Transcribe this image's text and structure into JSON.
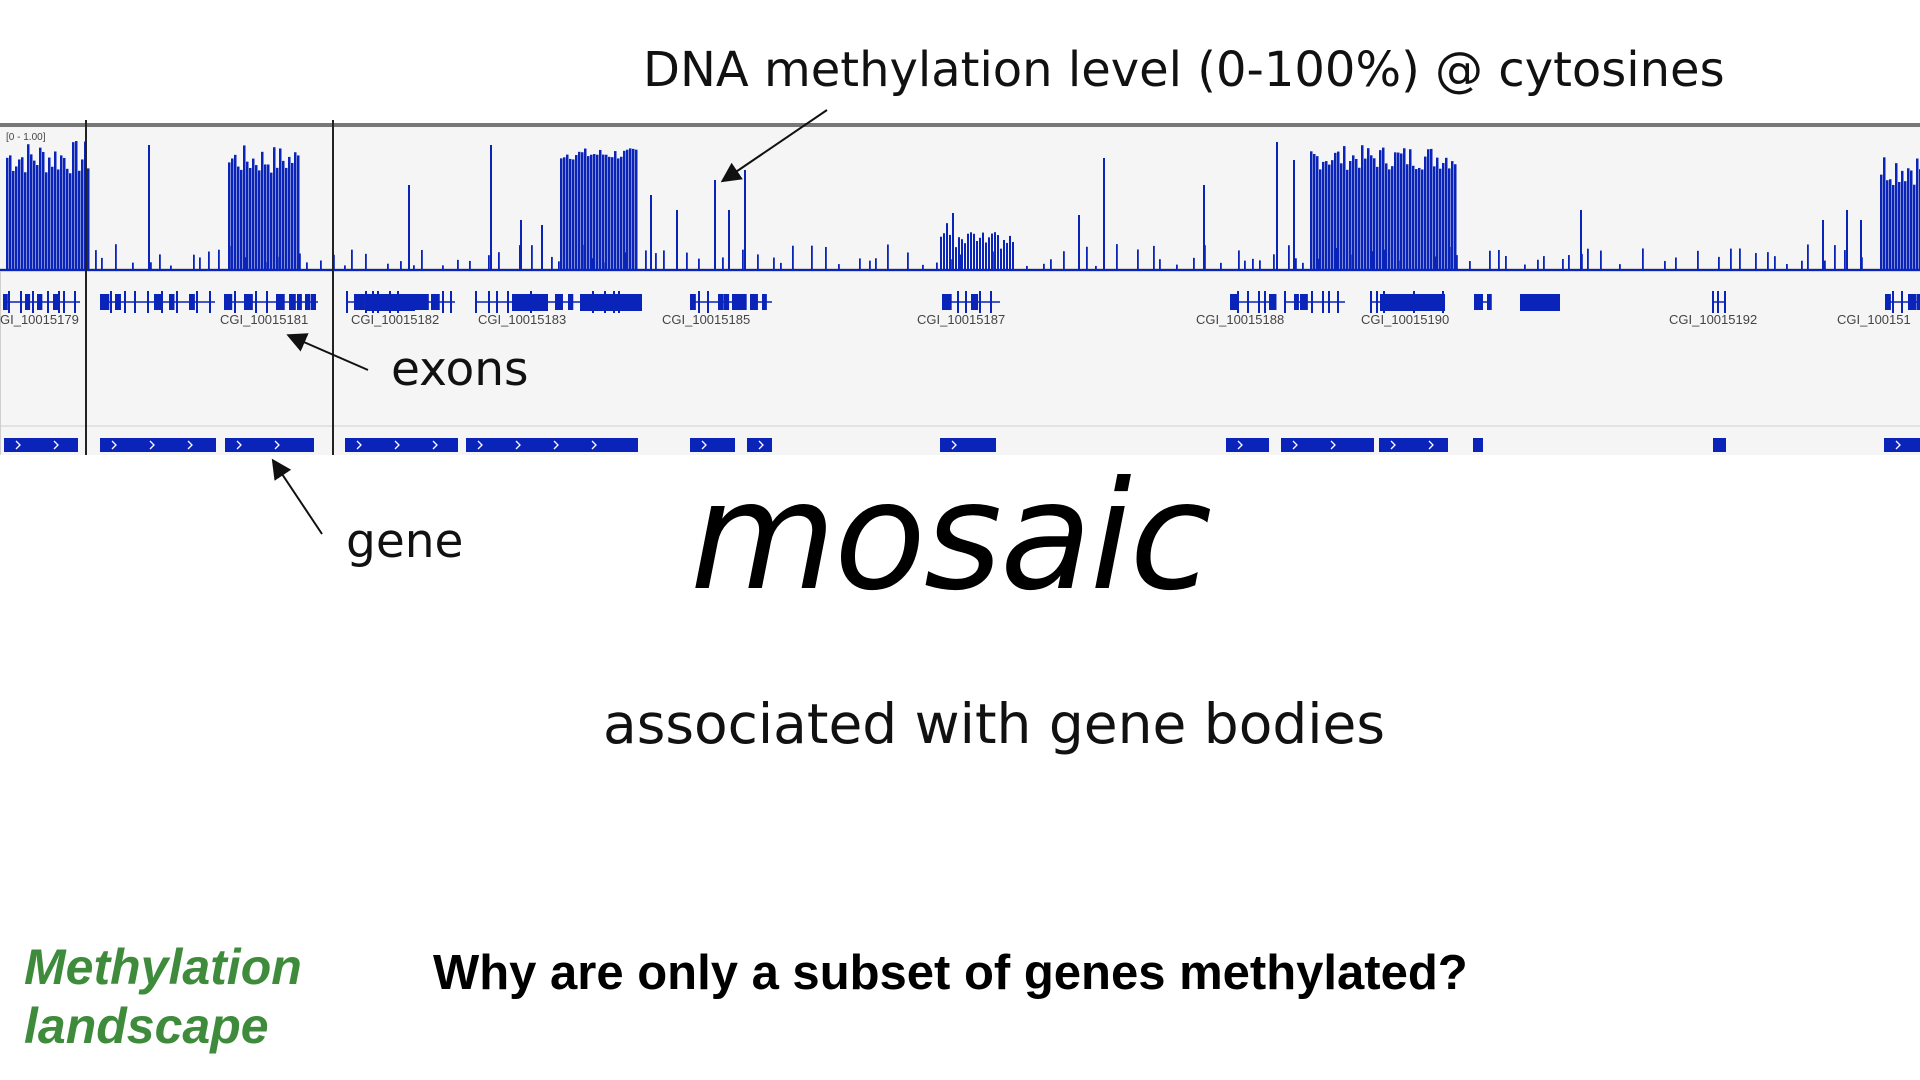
{
  "annotations": {
    "methylation": "DNA methylation level (0-100%) @ cytosines",
    "exons": "exons",
    "gene": "gene"
  },
  "slide": {
    "title": "mosaic",
    "subtitle": "associated with gene bodies",
    "question": "Why are only a subset of genes methylated?",
    "section_line1": "Methylation",
    "section_line2": "landscape"
  },
  "track": {
    "range_label": "[0 - 1.00]",
    "cgi_labels": [
      {
        "text": "GI_10015179",
        "at": 0
      },
      {
        "text": "CGI_10015181",
        "at": 220
      },
      {
        "text": "CGI_10015182",
        "at": 351
      },
      {
        "text": "CGI_10015183",
        "at": 478
      },
      {
        "text": "CGI_10015185",
        "at": 662
      },
      {
        "text": "CGI_10015187",
        "at": 917
      },
      {
        "text": "CGI_10015188",
        "at": 1196
      },
      {
        "text": "CGI_10015190",
        "at": 1361
      },
      {
        "text": "CGI_10015192",
        "at": 1669
      },
      {
        "text": "CGI_100151",
        "at": 1837
      }
    ]
  },
  "colors": {
    "track_blue": "#0a23b8",
    "section_green": "#3e8b3b",
    "track_bg": "#f5f5f5"
  }
}
